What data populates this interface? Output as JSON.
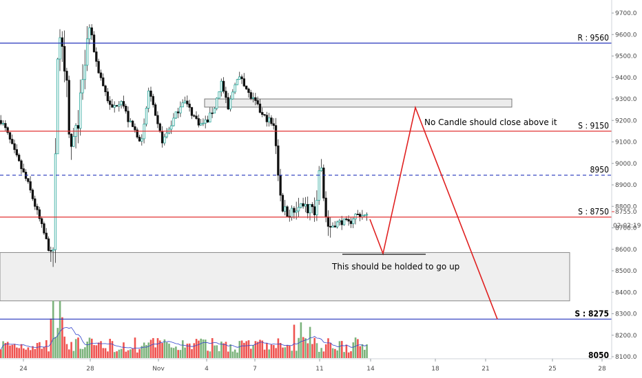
{
  "chart_data": {
    "type": "candlestick",
    "title": "",
    "xlabel": "",
    "ylabel": "",
    "ylim": [
      8050,
      9780
    ],
    "x_ticks": [
      "24",
      "28",
      "Nov",
      "4",
      "7",
      "11",
      "14",
      "18",
      "21",
      "25",
      "28"
    ],
    "y_ticks": [
      "8100.0",
      "8200.0",
      "8300.0",
      "8400.0",
      "8500.0",
      "8600.0",
      "8700.0",
      "8800.0",
      "8900.0",
      "9000.0",
      "9100.0",
      "9200.0",
      "9300.0",
      "9400.0",
      "9500.0",
      "9600.0",
      "9700.0"
    ],
    "last_price_label": "8755.0",
    "countdown_label": "02:02:19",
    "levels": [
      {
        "label": "R : 9560",
        "value": 9560,
        "color": "#2233bb",
        "style": "solid"
      },
      {
        "label": "S : 9150",
        "value": 9150,
        "color": "#e03030",
        "style": "solid"
      },
      {
        "label": "8950",
        "value": 8945,
        "color": "#2233bb",
        "style": "dashed"
      },
      {
        "label": "S : 8750",
        "value": 8750,
        "color": "#e03030",
        "style": "solid"
      },
      {
        "label": "S : 8275",
        "value": 8275,
        "color": "#2233bb",
        "style": "solid"
      },
      {
        "label": "8050",
        "value": 8050,
        "color": "#2233bb",
        "style": "solid"
      }
    ],
    "zones": [
      {
        "name": "resistance-box",
        "y_top": 9300,
        "y_bottom": 9262
      },
      {
        "name": "support-zone",
        "y_top": 8585,
        "y_bottom": 8360
      }
    ],
    "annotations": [
      {
        "text": "No Candle should close above it"
      },
      {
        "text": "This should be holded to go up"
      }
    ],
    "projection_path": [
      8740,
      8580,
      9260,
      8275
    ],
    "colors": {
      "up": "#26a69a",
      "down": "#111111",
      "vol_up": "#7cb37c",
      "vol_down": "#ef5350",
      "projection": "#e02020",
      "volume_ma": "#3344cc"
    }
  }
}
